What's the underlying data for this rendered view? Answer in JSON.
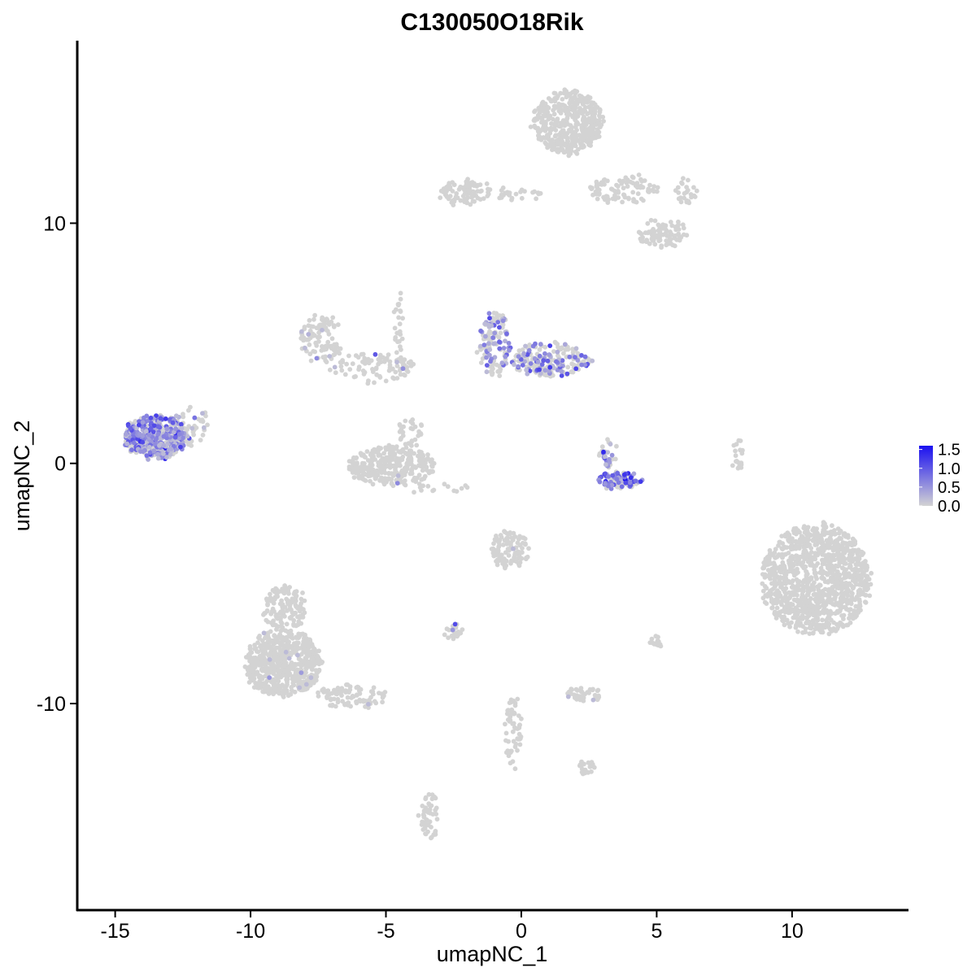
{
  "chart_data": {
    "type": "scatter",
    "title": "C130050O18Rik",
    "xlabel": "umapNC_1",
    "ylabel": "umapNC_2",
    "xlim": [
      -16.4,
      14.3
    ],
    "ylim": [
      -18.6,
      17.6
    ],
    "x_ticks": [
      -15,
      -10,
      -5,
      0,
      5,
      10
    ],
    "x_tick_labels": [
      "-15",
      "-10",
      "-5",
      "0",
      "5",
      "10"
    ],
    "y_ticks": [
      -10,
      0,
      10
    ],
    "y_tick_labels": [
      "-10",
      "0",
      "10"
    ],
    "color_scale": {
      "low_color": "#d3d3d3",
      "high_color": "#1a0ff0",
      "min": 0.0,
      "max": 1.6,
      "legend_ticks": [
        1.5,
        1.0,
        0.5,
        0.0
      ],
      "legend_tick_labels": [
        "1.5",
        "1.0",
        "0.5",
        "0.0"
      ],
      "legend_position": "right"
    },
    "grid": false,
    "clusters": [
      {
        "cx": 10.9,
        "cy": -4.8,
        "rx": 2.0,
        "ry": 2.3,
        "n": 1100,
        "expr": 0.0,
        "frac": 0.0
      },
      {
        "cx": 1.7,
        "cy": 14.2,
        "rx": 1.3,
        "ry": 1.3,
        "n": 450,
        "expr": 0.0,
        "frac": 0.0
      },
      {
        "cx": 3.8,
        "cy": 11.4,
        "rx": 1.3,
        "ry": 0.6,
        "n": 90,
        "expr": 0.0,
        "frac": 0.0
      },
      {
        "cx": 5.2,
        "cy": 9.6,
        "rx": 0.9,
        "ry": 0.6,
        "n": 90,
        "expr": 0.0,
        "frac": 0.0
      },
      {
        "cx": 6.1,
        "cy": 11.3,
        "rx": 0.4,
        "ry": 0.6,
        "n": 25,
        "expr": 0.0,
        "frac": 0.0
      },
      {
        "cx": -2.0,
        "cy": 11.3,
        "rx": 1.0,
        "ry": 0.5,
        "n": 90,
        "expr": 0.0,
        "frac": 0.0
      },
      {
        "cx": -0.2,
        "cy": 11.2,
        "rx": 1.0,
        "ry": 0.25,
        "n": 25,
        "expr": 0.0,
        "frac": 0.0
      },
      {
        "cx": -8.8,
        "cy": -8.3,
        "rx": 1.4,
        "ry": 1.4,
        "n": 600,
        "expr": 0.0,
        "frac": 0.02
      },
      {
        "cx": -8.7,
        "cy": -6.0,
        "rx": 0.8,
        "ry": 1.0,
        "n": 140,
        "expr": 0.0,
        "frac": 0.0
      },
      {
        "cx": -6.3,
        "cy": -9.7,
        "rx": 1.3,
        "ry": 0.5,
        "n": 90,
        "expr": 0.0,
        "frac": 0.02
      },
      {
        "cx": -4.8,
        "cy": -0.1,
        "rx": 1.6,
        "ry": 0.8,
        "n": 320,
        "expr": 0.0,
        "frac": 0.01
      },
      {
        "cx": -4.1,
        "cy": 1.3,
        "rx": 0.5,
        "ry": 0.6,
        "n": 30,
        "expr": 0.0,
        "frac": 0.0
      },
      {
        "cx": -7.4,
        "cy": 5.2,
        "rx": 0.8,
        "ry": 1.0,
        "n": 100,
        "expr": 0.3,
        "frac": 0.05
      },
      {
        "cx": -5.5,
        "cy": 4.0,
        "rx": 1.5,
        "ry": 0.6,
        "n": 90,
        "expr": 0.3,
        "frac": 0.06
      },
      {
        "cx": -4.5,
        "cy": 6.0,
        "rx": 0.2,
        "ry": 1.3,
        "n": 25,
        "expr": 0.0,
        "frac": 0.0
      },
      {
        "cx": -1.0,
        "cy": 5.0,
        "rx": 0.6,
        "ry": 1.3,
        "n": 130,
        "expr": 0.55,
        "frac": 0.4
      },
      {
        "cx": 1.1,
        "cy": 4.3,
        "rx": 1.5,
        "ry": 0.7,
        "n": 220,
        "expr": 0.6,
        "frac": 0.35
      },
      {
        "cx": -13.5,
        "cy": 1.1,
        "rx": 1.2,
        "ry": 0.9,
        "n": 420,
        "expr": 0.6,
        "frac": 0.6
      },
      {
        "cx": -12.2,
        "cy": 1.6,
        "rx": 0.6,
        "ry": 0.8,
        "n": 40,
        "expr": 0.3,
        "frac": 0.2
      },
      {
        "cx": 3.6,
        "cy": -0.7,
        "rx": 0.8,
        "ry": 0.35,
        "n": 100,
        "expr": 0.85,
        "frac": 0.55
      },
      {
        "cx": 3.2,
        "cy": 0.4,
        "rx": 0.3,
        "ry": 0.6,
        "n": 30,
        "expr": 0.6,
        "frac": 0.5
      },
      {
        "cx": -0.4,
        "cy": -3.6,
        "rx": 0.7,
        "ry": 0.8,
        "n": 110,
        "expr": 0.0,
        "frac": 0.01
      },
      {
        "cx": -2.5,
        "cy": -7.0,
        "rx": 0.35,
        "ry": 0.3,
        "n": 25,
        "expr": 0.3,
        "frac": 0.1
      },
      {
        "cx": 2.3,
        "cy": -9.6,
        "rx": 0.7,
        "ry": 0.3,
        "n": 40,
        "expr": 0.0,
        "frac": 0.02
      },
      {
        "cx": -0.3,
        "cy": -11.2,
        "rx": 0.3,
        "ry": 1.5,
        "n": 55,
        "expr": 0.0,
        "frac": 0.0
      },
      {
        "cx": -3.4,
        "cy": -14.7,
        "rx": 0.3,
        "ry": 1.0,
        "n": 50,
        "expr": 0.0,
        "frac": 0.0
      },
      {
        "cx": 2.4,
        "cy": -12.7,
        "rx": 0.3,
        "ry": 0.3,
        "n": 20,
        "expr": 0.0,
        "frac": 0.0
      },
      {
        "cx": 8.0,
        "cy": 0.3,
        "rx": 0.2,
        "ry": 0.9,
        "n": 18,
        "expr": 0.0,
        "frac": 0.0
      },
      {
        "cx": 5.0,
        "cy": -7.4,
        "rx": 0.3,
        "ry": 0.2,
        "n": 14,
        "expr": 0.0,
        "frac": 0.0
      },
      {
        "cx": -3.0,
        "cy": -1.0,
        "rx": 1.0,
        "ry": 0.3,
        "n": 15,
        "expr": 0.0,
        "frac": 0.0
      }
    ]
  }
}
